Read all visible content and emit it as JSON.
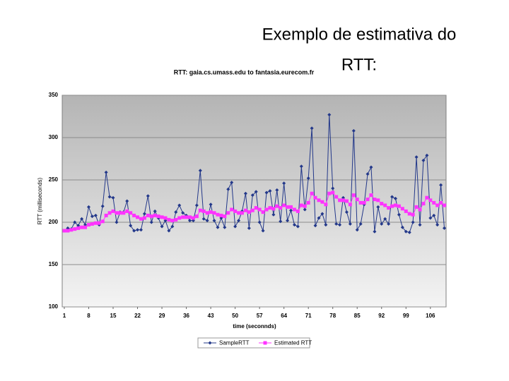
{
  "slide": {
    "title_lines": [
      "Exemplo de estimativa do",
      "RTT:"
    ]
  },
  "chart_data": {
    "type": "line",
    "title": "RTT: gaia.cs.umass.edu to fantasia.eurecom.fr",
    "x_label": "time (seconnds)",
    "y_label": "RTT (milliseconds)",
    "x": [
      1,
      2,
      3,
      4,
      5,
      6,
      7,
      8,
      9,
      10,
      11,
      12,
      13,
      14,
      15,
      16,
      17,
      18,
      19,
      20,
      21,
      22,
      23,
      24,
      25,
      26,
      27,
      28,
      29,
      30,
      31,
      32,
      33,
      34,
      35,
      36,
      37,
      38,
      39,
      40,
      41,
      42,
      43,
      44,
      45,
      46,
      47,
      48,
      49,
      50,
      51,
      52,
      53,
      54,
      55,
      56,
      57,
      58,
      59,
      60,
      61,
      62,
      63,
      64,
      65,
      66,
      67,
      68,
      69,
      70,
      71,
      72,
      73,
      74,
      75,
      76,
      77,
      78,
      79,
      80,
      81,
      82,
      83,
      84,
      85,
      86,
      87,
      88,
      89,
      90,
      91,
      92,
      93,
      94,
      95,
      96,
      97,
      98,
      99,
      100,
      101,
      102,
      103,
      104,
      105,
      106,
      107,
      108,
      109,
      110
    ],
    "series": [
      {
        "name": "SampleRTT",
        "color": "#23388a",
        "marker": "diamond",
        "values": [
          190,
          193,
          192,
          200,
          196,
          204,
          197,
          218,
          207,
          208,
          197,
          219,
          259,
          230,
          229,
          200,
          212,
          212,
          225,
          196,
          190,
          191,
          191,
          210,
          231,
          200,
          213,
          205,
          195,
          202,
          190,
          195,
          212,
          220,
          211,
          208,
          202,
          202,
          220,
          261,
          204,
          202,
          221,
          202,
          194,
          205,
          194,
          239,
          247,
          195,
          202,
          213,
          234,
          193,
          232,
          236,
          200,
          190,
          235,
          237,
          209,
          238,
          201,
          246,
          202,
          214,
          197,
          195,
          266,
          215,
          252,
          311,
          196,
          205,
          210,
          197,
          327,
          240,
          198,
          197,
          229,
          212,
          198,
          308,
          191,
          198,
          221,
          257,
          265,
          189,
          218,
          198,
          204,
          198,
          230,
          228,
          209,
          194,
          189,
          188,
          200,
          277,
          197,
          273,
          279,
          205,
          208,
          197,
          244,
          193
        ]
      },
      {
        "name": "Estimated RTT",
        "color": "#ff33ff",
        "marker": "square",
        "values": [
          190,
          190,
          191,
          192,
          193,
          194,
          194,
          197,
          198,
          199,
          199,
          201,
          208,
          211,
          213,
          211,
          211,
          211,
          213,
          211,
          208,
          206,
          204,
          205,
          208,
          207,
          208,
          207,
          206,
          205,
          203,
          202,
          203,
          205,
          206,
          206,
          206,
          205,
          207,
          214,
          213,
          211,
          212,
          211,
          209,
          208,
          207,
          211,
          215,
          213,
          211,
          211,
          214,
          212,
          214,
          217,
          215,
          212,
          215,
          217,
          216,
          219,
          217,
          220,
          218,
          218,
          215,
          213,
          220,
          219,
          223,
          234,
          229,
          226,
          224,
          221,
          234,
          235,
          230,
          226,
          226,
          225,
          221,
          232,
          227,
          223,
          223,
          227,
          232,
          227,
          226,
          222,
          220,
          217,
          219,
          220,
          219,
          216,
          213,
          210,
          209,
          218,
          215,
          222,
          229,
          226,
          223,
          220,
          223,
          220
        ]
      }
    ],
    "xlim": [
      0.4,
      110.5
    ],
    "xticks": [
      1,
      8,
      15,
      22,
      29,
      36,
      43,
      50,
      57,
      64,
      71,
      78,
      85,
      92,
      99,
      106
    ],
    "ylim": [
      100,
      350
    ],
    "yticks": [
      100,
      150,
      200,
      250,
      300,
      350
    ],
    "grid": true,
    "legend": "bottom"
  }
}
